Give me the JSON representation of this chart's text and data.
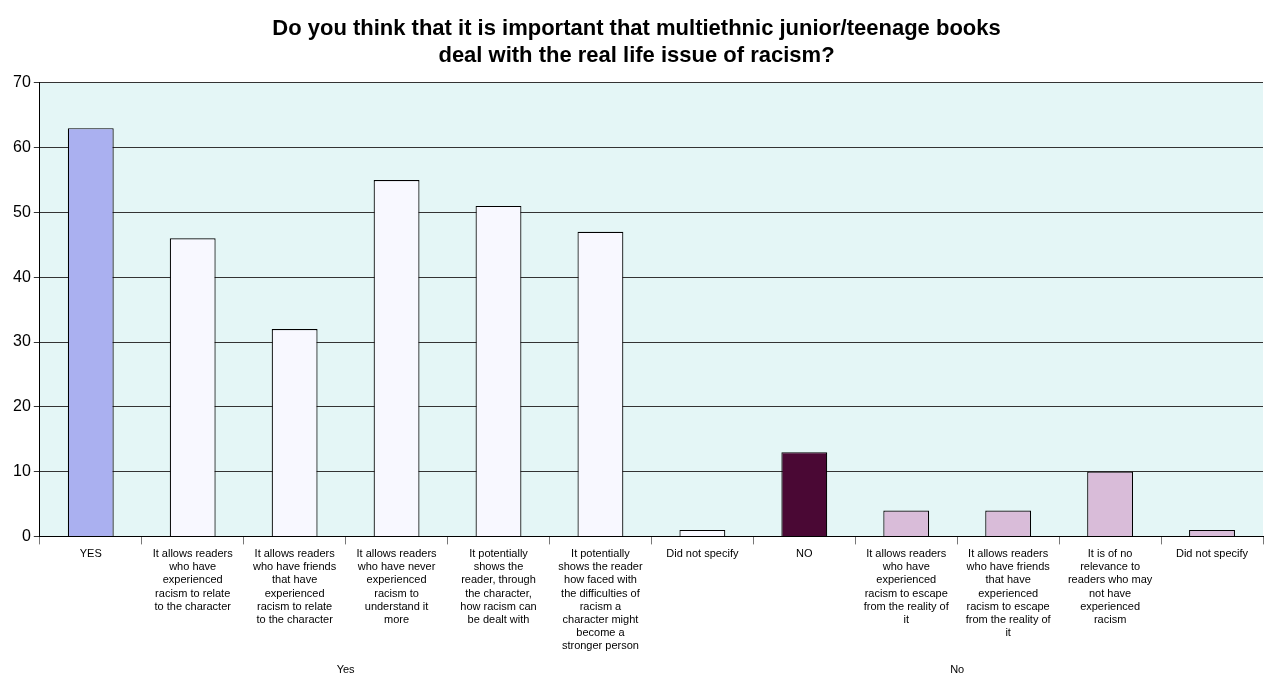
{
  "chart_data": {
    "type": "bar",
    "title": "Do you think that it is important that multiethnic junior/teenage books deal with the real life issue of racism?",
    "categories": [
      "YES",
      "It allows readers who have experienced racism to relate to the character",
      "It allows readers who have friends that have experienced racism to relate to the character",
      "It allows readers who have never experienced racism to understand it more",
      "It potentially shows the reader, through the character, how racism can be dealt with",
      "It potentially shows the reader how faced with the difficulties of racism a character might become a stronger person",
      "Did not specify",
      "NO",
      "It allows readers who have experienced racism to escape from the reality of it",
      "It allows readers who have friends that have experienced racism to escape from the reality of it",
      "It is of no relevance to readers who may not have experienced racism",
      "Did not specify"
    ],
    "values": [
      63,
      46,
      32,
      55,
      51,
      47,
      1,
      13,
      4,
      4,
      10,
      1
    ],
    "colors": [
      "#aab0f0",
      "#f8f8ff",
      "#f8f8ff",
      "#f8f8ff",
      "#f8f8ff",
      "#f8f8ff",
      "#f8f8ff",
      "#4a0834",
      "#d9bcd9",
      "#d9bcd9",
      "#d9bcd9",
      "#d9bcd9"
    ],
    "ylim": [
      0,
      70
    ],
    "yticks": [
      0,
      10,
      20,
      30,
      40,
      50,
      60,
      70
    ],
    "grid": "y",
    "legend": false,
    "annotations": [
      "Yes",
      "No"
    ]
  }
}
